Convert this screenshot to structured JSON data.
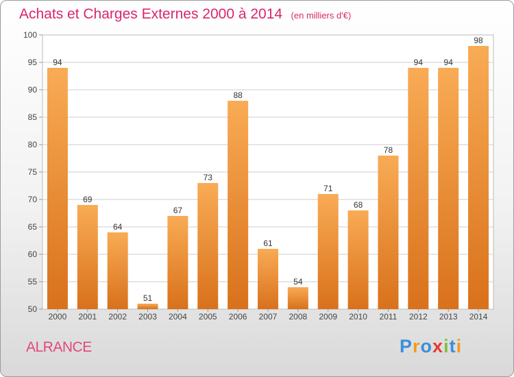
{
  "header": {
    "title": "Achats et Charges Externes 2000 à 2014",
    "subtitle": "(en milliers d'€)"
  },
  "footer": {
    "town": "ALRANCE",
    "brand": "Proxiti",
    "brand_colors": [
      "#3a8fd8",
      "#f39a1e",
      "#3a8fd8",
      "#e6392f",
      "#7cc142",
      "#3a8fd8",
      "#f39a1e"
    ]
  },
  "colors": {
    "bar_top": "#f9ab55",
    "bar_bottom": "#d9711b",
    "title": "#d9266e",
    "grid": "#cccccc",
    "axis_text": "#444444"
  },
  "chart_data": {
    "type": "bar",
    "categories": [
      "2000",
      "2001",
      "2002",
      "2003",
      "2004",
      "2005",
      "2006",
      "2007",
      "2008",
      "2009",
      "2010",
      "2011",
      "2012",
      "2013",
      "2014"
    ],
    "values": [
      94,
      69,
      64,
      51,
      67,
      73,
      88,
      61,
      54,
      71,
      68,
      78,
      94,
      94,
      98
    ],
    "data_labels": [
      "94",
      "69",
      "64",
      "51",
      "67",
      "73",
      "88",
      "61",
      "54",
      "71",
      "68",
      "78",
      "94",
      "94",
      "98"
    ],
    "ylim": [
      50,
      100
    ],
    "yticks": [
      50,
      55,
      60,
      65,
      70,
      75,
      80,
      85,
      90,
      95,
      100
    ],
    "grid": true,
    "legend": "none"
  }
}
